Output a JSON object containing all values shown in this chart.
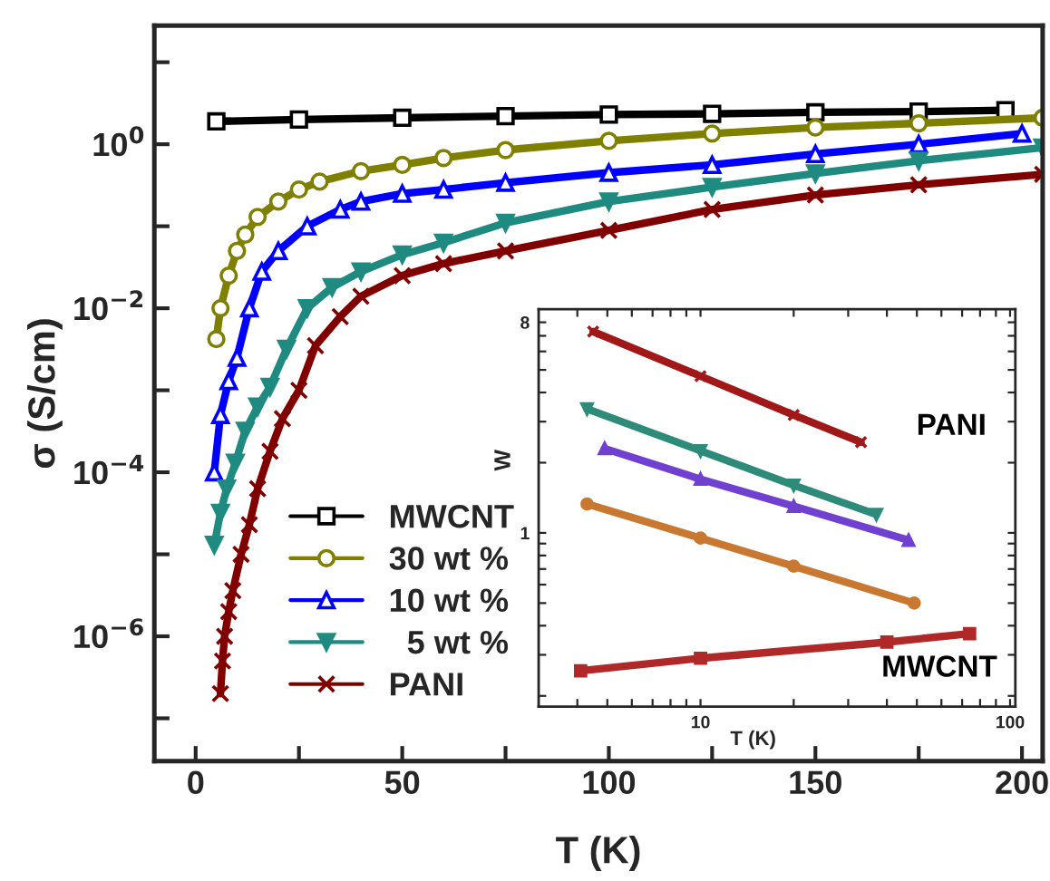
{
  "chart_data": [
    {
      "type": "line",
      "xlabel": "T (K)",
      "ylabel": "σ (S/cm)",
      "log": "y",
      "legend": "bottom left",
      "xlim": [
        -10,
        205
      ],
      "xticks": [
        0,
        {
          "value": 25,
          "label": null
        },
        50,
        {
          "value": 75,
          "label": null
        },
        100,
        {
          "value": 125,
          "label": null
        },
        150,
        {
          "value": 175,
          "label": null
        },
        200
      ],
      "ylim": [
        3e-08,
        28
      ],
      "yticks": [
        {
          "value": 1e-07,
          "label": null
        },
        {
          "value": 1e-06,
          "label": "10$^{−6}$"
        },
        {
          "value": 1e-05,
          "label": null
        },
        {
          "value": 0.0001,
          "label": "10$^{−4}$"
        },
        {
          "value": 0.001,
          "label": null
        },
        {
          "value": 0.01,
          "label": "10$^{−2}$"
        },
        {
          "value": 0.1,
          "label": null
        },
        {
          "value": 1,
          "label": "10$^{0}$"
        },
        {
          "value": 10,
          "label": null
        }
      ],
      "series": [
        {
          "name": "MWCNT",
          "color": "#000000",
          "marker": "square",
          "x": [
            5,
            25,
            50,
            75,
            100,
            125,
            150,
            175,
            196
          ],
          "values": [
            1.9,
            2.0,
            2.1,
            2.2,
            2.3,
            2.35,
            2.45,
            2.5,
            2.6
          ]
        },
        {
          "name": "30 wt %",
          "color": "#808000",
          "marker": "circle",
          "x": [
            5,
            6,
            8,
            10,
            12,
            15,
            20,
            25,
            30,
            40,
            50,
            60,
            75,
            100,
            125,
            150,
            175,
            205
          ],
          "values": [
            0.0042,
            0.01,
            0.025,
            0.05,
            0.079,
            0.13,
            0.2,
            0.28,
            0.35,
            0.47,
            0.56,
            0.68,
            0.85,
            1.1,
            1.35,
            1.6,
            1.8,
            2.1
          ]
        },
        {
          "name": "10 wt %",
          "color": "#0000ff",
          "marker": "triangle",
          "x": [
            4.5,
            6,
            8,
            10,
            13,
            16,
            20,
            27,
            35,
            40,
            50,
            60,
            75,
            100,
            125,
            150,
            175,
            200
          ],
          "values": [
            0.0001,
            0.0005,
            0.0013,
            0.0025,
            0.01,
            0.028,
            0.05,
            0.1,
            0.16,
            0.2,
            0.25,
            0.28,
            0.34,
            0.45,
            0.56,
            0.76,
            1.0,
            1.35
          ]
        },
        {
          "name": "  5 wt %",
          "color": "#1f8a80",
          "marker": "triangle_down",
          "x": [
            4.5,
            6,
            7.5,
            9.6,
            12,
            15,
            18,
            22,
            27,
            33,
            40,
            50,
            60,
            75,
            100,
            125,
            150,
            175,
            205
          ],
          "values": [
            1.3e-05,
            3.2e-05,
            6.3e-05,
            0.00013,
            0.00032,
            0.00063,
            0.0011,
            0.0032,
            0.01,
            0.018,
            0.028,
            0.045,
            0.063,
            0.11,
            0.2,
            0.3,
            0.44,
            0.63,
            0.91
          ]
        },
        {
          "name": "PANI",
          "color": "#800000",
          "marker": "cross",
          "x": [
            6,
            6.5,
            7,
            8,
            9,
            11,
            13,
            15,
            18,
            21,
            25,
            29,
            35,
            40,
            50,
            60,
            75,
            100,
            125,
            150,
            175,
            205
          ],
          "values": [
            2e-07,
            5e-07,
            1e-06,
            2e-06,
            3.6e-06,
            1e-05,
            2.3e-05,
            6.3e-05,
            0.00018,
            0.00045,
            0.001,
            0.0035,
            0.0079,
            0.014,
            0.025,
            0.035,
            0.05,
            0.089,
            0.16,
            0.24,
            0.32,
            0.43
          ]
        }
      ]
    },
    {
      "type": "line",
      "xlabel": "T (K)",
      "ylabel": "W",
      "log": "xy",
      "legend": false,
      "xlim": [
        3,
        104
      ],
      "xticks": [
        {
          "value": 4,
          "label": null
        },
        {
          "value": 5,
          "label": null
        },
        {
          "value": 6,
          "label": null
        },
        {
          "value": 7,
          "label": null
        },
        {
          "value": 8,
          "label": null
        },
        {
          "value": 9,
          "label": null
        },
        10,
        {
          "value": 20,
          "label": null
        },
        {
          "value": 30,
          "label": null
        },
        {
          "value": 40,
          "label": null
        },
        {
          "value": 50,
          "label": null
        },
        {
          "value": 60,
          "label": null
        },
        {
          "value": 70,
          "label": null
        },
        {
          "value": 80,
          "label": null
        },
        {
          "value": 90,
          "label": null
        },
        100
      ],
      "ylim": [
        0.18,
        9.1
      ],
      "yticks": [
        {
          "value": 0.2,
          "label": null
        },
        {
          "value": 0.3,
          "label": null
        },
        {
          "value": 0.4,
          "label": null
        },
        {
          "value": 0.5,
          "label": null
        },
        {
          "value": 0.6,
          "label": null
        },
        {
          "value": 0.7,
          "label": null
        },
        {
          "value": 0.8,
          "label": null
        },
        {
          "value": 0.9,
          "label": null
        },
        1,
        {
          "value": 2,
          "label": null
        },
        {
          "value": 3,
          "label": null
        },
        {
          "value": 4,
          "label": null
        },
        {
          "value": 5,
          "label": null
        },
        {
          "value": 6,
          "label": null
        },
        {
          "value": 7,
          "label": null
        },
        8
      ],
      "series": [
        {
          "name": "PANI",
          "color": "#a01818",
          "marker": "cross",
          "x": [
            4.5,
            10,
            20,
            33
          ],
          "values": [
            7.3,
            4.7,
            3.2,
            2.45
          ]
        },
        {
          "color": "#2e8b7a",
          "marker": "triangle_down",
          "x": [
            4.3,
            10,
            20,
            37
          ],
          "values": [
            3.4,
            2.25,
            1.6,
            1.2
          ]
        },
        {
          "color": "#7040d0",
          "marker": "triangle",
          "x": [
            4.9,
            10,
            20,
            47
          ],
          "values": [
            2.3,
            1.7,
            1.3,
            0.93
          ]
        },
        {
          "color": "#c87830",
          "marker": "circle",
          "x": [
            4.3,
            10,
            20,
            49
          ],
          "values": [
            1.33,
            0.95,
            0.72,
            0.5
          ]
        },
        {
          "name": "MWCNT",
          "color": "#b02828",
          "marker": "square",
          "x": [
            4.1,
            10,
            40,
            74
          ],
          "values": [
            0.256,
            0.29,
            0.34,
            0.37
          ]
        }
      ]
    }
  ]
}
